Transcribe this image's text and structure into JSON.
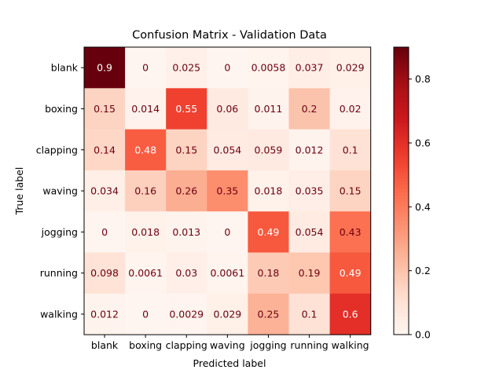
{
  "chart_data": {
    "type": "heatmap",
    "title": "Confusion Matrix - Validation Data",
    "xlabel": "Predicted label",
    "ylabel": "True label",
    "x_categories": [
      "blank",
      "boxing",
      "clapping",
      "waving",
      "jogging",
      "running",
      "walking"
    ],
    "y_categories": [
      "blank",
      "boxing",
      "clapping",
      "waving",
      "jogging",
      "running",
      "walking"
    ],
    "values": [
      [
        0.9,
        0,
        0.025,
        0,
        0.0058,
        0.037,
        0.029
      ],
      [
        0.15,
        0.014,
        0.55,
        0.06,
        0.011,
        0.2,
        0.02
      ],
      [
        0.14,
        0.48,
        0.15,
        0.054,
        0.059,
        0.012,
        0.1
      ],
      [
        0.034,
        0.16,
        0.26,
        0.35,
        0.018,
        0.035,
        0.15
      ],
      [
        0,
        0.018,
        0.013,
        0,
        0.49,
        0.054,
        0.43
      ],
      [
        0.098,
        0.0061,
        0.03,
        0.0061,
        0.18,
        0.19,
        0.49
      ],
      [
        0.012,
        0,
        0.0029,
        0.029,
        0.25,
        0.1,
        0.6
      ]
    ],
    "value_labels": [
      [
        "0.9",
        "0",
        "0.025",
        "0",
        "0.0058",
        "0.037",
        "0.029"
      ],
      [
        "0.15",
        "0.014",
        "0.55",
        "0.06",
        "0.011",
        "0.2",
        "0.02"
      ],
      [
        "0.14",
        "0.48",
        "0.15",
        "0.054",
        "0.059",
        "0.012",
        "0.1"
      ],
      [
        "0.034",
        "0.16",
        "0.26",
        "0.35",
        "0.018",
        "0.035",
        "0.15"
      ],
      [
        "0",
        "0.018",
        "0.013",
        "0",
        "0.49",
        "0.054",
        "0.43"
      ],
      [
        "0.098",
        "0.0061",
        "0.03",
        "0.0061",
        "0.18",
        "0.19",
        "0.49"
      ],
      [
        "0.012",
        "0",
        "0.0029",
        "0.029",
        "0.25",
        "0.1",
        "0.6"
      ]
    ],
    "colormap": "Reds",
    "color_range": [
      0,
      0.9
    ],
    "colorbar": {
      "ticks": [
        0.0,
        0.2,
        0.4,
        0.6,
        0.8
      ],
      "tick_labels": [
        "0.0",
        "0.2",
        "0.4",
        "0.6",
        "0.8"
      ]
    },
    "text_colors": {
      "dark_cell": "#ffffff",
      "light_cell": "#6b0010"
    }
  }
}
